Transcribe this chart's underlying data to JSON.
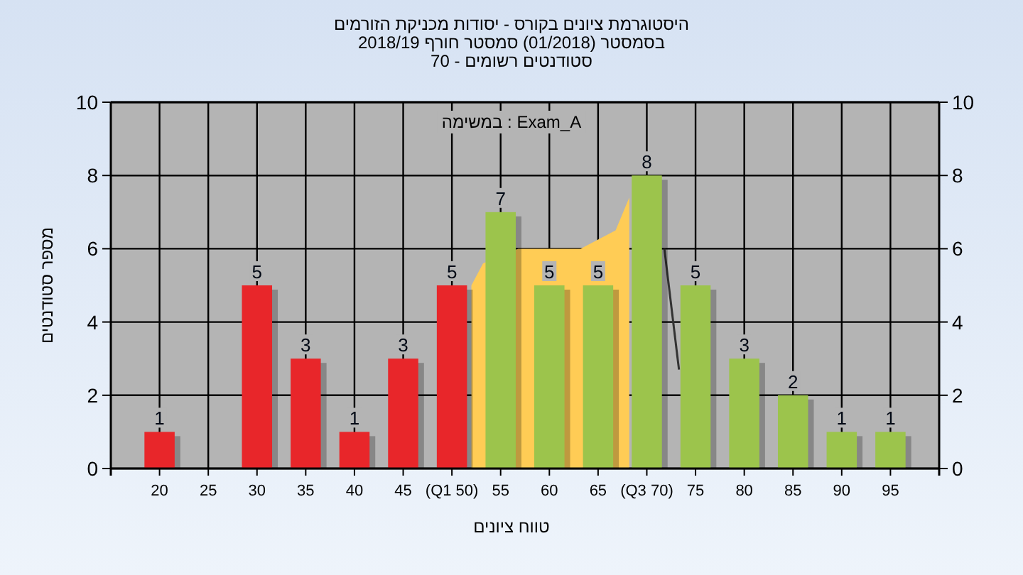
{
  "chart_data": {
    "type": "bar",
    "title": "היסטוגרמת ציונים בקורס - יסודות מכניקת הזורמים",
    "subtitle": "בסמסטר  (01/2018)  סמסטר חורף 2018/19",
    "annotations": [
      "סטודנטים רשומים - 70",
      "Exam_A : במשימה"
    ],
    "xlabel": "טווח ציונים",
    "ylabel": "מספר סטודנטים",
    "x": [
      20,
      25,
      30,
      35,
      40,
      45,
      50,
      55,
      60,
      65,
      70,
      75,
      80,
      85,
      90,
      95
    ],
    "xlim": [
      15,
      100
    ],
    "xticks": [
      20,
      25,
      30,
      35,
      40,
      45,
      {
        "value": 50,
        "label": "(Q1 50)"
      },
      55,
      60,
      65,
      {
        "value": 70,
        "label": "(Q3 70)"
      },
      75,
      80,
      85,
      90,
      95
    ],
    "series": [
      {
        "type": "area",
        "color": "#ffcc55",
        "x": [
          52,
          53.2,
          56.8,
          58.2,
          61.8,
          63.2,
          66.8,
          68.2
        ],
        "values": [
          5,
          5.6,
          6,
          6,
          6,
          6,
          6.5,
          7.4
        ]
      },
      {
        "type": "line",
        "color": "#333333",
        "x": [
          71.8,
          73.3
        ],
        "values": [
          6,
          2.7
        ]
      },
      {
        "colors": [
          "#e8262a",
          "#e8262a",
          "#e8262a",
          "#e8262a",
          "#e8262a",
          "#e8262a",
          "#e8262a",
          "#9cc44c",
          "#9cc44c",
          "#9cc44c",
          "#9cc44c",
          "#9cc44c",
          "#9cc44c",
          "#9cc44c",
          "#9cc44c",
          "#9cc44c"
        ],
        "values": [
          1,
          0,
          5,
          3,
          1,
          3,
          5,
          7,
          5,
          5,
          8,
          5,
          3,
          2,
          1,
          1
        ],
        "value_labels": [
          "1",
          null,
          "5",
          "3",
          "1",
          "3",
          "5",
          "7",
          "5",
          "5",
          "8",
          "5",
          "3",
          "2",
          "1",
          "1"
        ]
      }
    ],
    "ylim": [
      0,
      10
    ],
    "yticks": [
      0,
      2,
      4,
      6,
      8,
      10
    ],
    "y2lim": [
      0,
      10
    ],
    "y2ticks": [
      0,
      2,
      4,
      6,
      8,
      10
    ],
    "grid": true
  }
}
